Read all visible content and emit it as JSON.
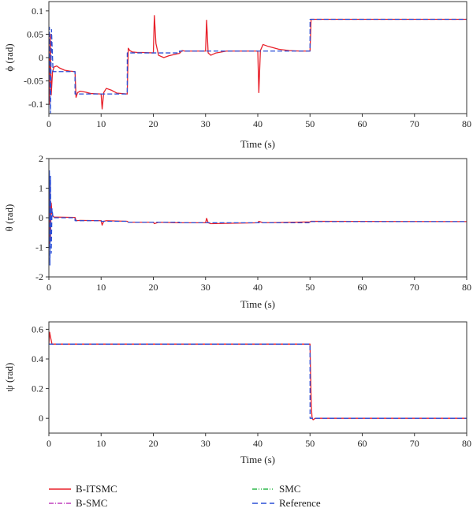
{
  "colors": {
    "b_itsmc": "#e8202a",
    "b_smc": "#c03fbe",
    "smc": "#2fb84a",
    "reference": "#2a4fd6",
    "axis": "#333333"
  },
  "legend": {
    "b_itsmc": "B-ITSMC",
    "b_smc": "B-SMC",
    "smc": "SMC",
    "reference": "Reference"
  },
  "chart_data": [
    {
      "type": "line",
      "title": "",
      "xlabel": "Time (s)",
      "ylabel": "ϕ (rad)",
      "xlim": [
        0,
        80
      ],
      "ylim": [
        -0.12,
        0.12
      ],
      "xticks": [
        "0",
        "10",
        "20",
        "30",
        "40",
        "50",
        "60",
        "70",
        "80"
      ],
      "yticks": [
        "0.1",
        "0.05",
        "0",
        "-0.05",
        "-0.1"
      ],
      "ytick_values": [
        0.1,
        0.05,
        0,
        -0.05,
        -0.1
      ],
      "series": [
        {
          "name": "B-ITSMC",
          "x": [
            0,
            0.1,
            0.25,
            0.45,
            0.7,
            1,
            1.5,
            2,
            3,
            4,
            5,
            5.2,
            5.5,
            6,
            7,
            8,
            10,
            10.2,
            10.5,
            11,
            12,
            13,
            15,
            15.2,
            15.5,
            16,
            17,
            18,
            20,
            20.2,
            20.5,
            21,
            22,
            23,
            25,
            25.5,
            26,
            27,
            30,
            30.2,
            30.5,
            31,
            32,
            34,
            36,
            38,
            40,
            40.2,
            40.5,
            41,
            42,
            44,
            46,
            48,
            50,
            50.2,
            51,
            55,
            60,
            70,
            80
          ],
          "y": [
            0,
            -0.1,
            0.05,
            -0.08,
            -0.03,
            -0.02,
            -0.018,
            -0.022,
            -0.027,
            -0.029,
            -0.03,
            -0.085,
            -0.075,
            -0.072,
            -0.074,
            -0.077,
            -0.078,
            -0.11,
            -0.075,
            -0.066,
            -0.07,
            -0.076,
            -0.078,
            0.02,
            0.015,
            0.012,
            0.011,
            0.011,
            0.01,
            0.09,
            0.03,
            0.005,
            0.0,
            0.004,
            0.009,
            0.015,
            0.014,
            0.014,
            0.014,
            0.08,
            0.01,
            0.005,
            0.01,
            0.014,
            0.014,
            0.014,
            0.014,
            -0.075,
            0.015,
            0.028,
            0.024,
            0.018,
            0.015,
            0.014,
            0.014,
            0.082,
            0.082,
            0.082,
            0.082,
            0.082,
            0.082
          ]
        },
        {
          "name": "Reference",
          "x": [
            0,
            0.1,
            0.3,
            0.5,
            0.8,
            1,
            5,
            5.01,
            10,
            10.01,
            15,
            15.01,
            20,
            20.01,
            25,
            25.01,
            30,
            30.01,
            40,
            40.01,
            50,
            50.01,
            80
          ],
          "y": [
            0,
            0.065,
            -0.12,
            0.06,
            -0.03,
            -0.03,
            -0.03,
            -0.078,
            -0.078,
            -0.078,
            -0.078,
            0.01,
            0.01,
            0.01,
            0.01,
            0.014,
            0.014,
            0.014,
            0.014,
            0.014,
            0.014,
            0.082,
            0.082
          ]
        }
      ]
    },
    {
      "type": "line",
      "title": "",
      "xlabel": "Time (s)",
      "ylabel": "θ (rad)",
      "xlim": [
        0,
        80
      ],
      "ylim": [
        -2,
        2
      ],
      "xticks": [
        "0",
        "10",
        "20",
        "30",
        "40",
        "50",
        "60",
        "70",
        "80"
      ],
      "yticks": [
        "2",
        "1",
        "0",
        "-1",
        "-2"
      ],
      "ytick_values": [
        2,
        1,
        0,
        -1,
        -2
      ],
      "series": [
        {
          "name": "B-ITSMC",
          "x": [
            0,
            0.1,
            0.2,
            0.3,
            0.45,
            0.6,
            0.8,
            1,
            2,
            5,
            5.2,
            6,
            10,
            10.2,
            10.5,
            11,
            15,
            15.2,
            20,
            20.2,
            21,
            25,
            30,
            30.2,
            30.5,
            31,
            40,
            40.2,
            41,
            50,
            50.2,
            80
          ],
          "y": [
            0,
            -1.0,
            1.2,
            -0.8,
            0.5,
            0.15,
            0.05,
            0.02,
            0.02,
            0.01,
            -0.1,
            -0.09,
            -0.1,
            -0.25,
            -0.12,
            -0.1,
            -0.12,
            -0.15,
            -0.15,
            -0.2,
            -0.15,
            -0.17,
            -0.17,
            -0.02,
            -0.17,
            -0.2,
            -0.17,
            -0.12,
            -0.17,
            -0.14,
            -0.12,
            -0.13
          ]
        },
        {
          "name": "Reference",
          "x": [
            0,
            0.1,
            0.2,
            0.3,
            0.45,
            0.6,
            0.8,
            1,
            5,
            5.01,
            10,
            10.01,
            15,
            15.01,
            25,
            25.01,
            50,
            50.01,
            80
          ],
          "y": [
            0,
            1.6,
            -1.6,
            1.4,
            -1.2,
            0.3,
            0.0,
            0.0,
            0.0,
            -0.1,
            -0.1,
            -0.12,
            -0.12,
            -0.15,
            -0.15,
            -0.17,
            -0.17,
            -0.13,
            -0.13
          ]
        }
      ]
    },
    {
      "type": "line",
      "title": "",
      "xlabel": "Time (s)",
      "ylabel": "ψ (rad)",
      "xlim": [
        0,
        80
      ],
      "ylim": [
        -0.1,
        0.65
      ],
      "xticks": [
        "0",
        "10",
        "20",
        "30",
        "40",
        "50",
        "60",
        "70",
        "80"
      ],
      "yticks": [
        "0.6",
        "0.4",
        "0.2",
        "0"
      ],
      "ytick_values": [
        0.6,
        0.4,
        0.2,
        0
      ],
      "series": [
        {
          "name": "B-ITSMC",
          "x": [
            0,
            0.15,
            0.3,
            0.6,
            1,
            50,
            50.1,
            50.25,
            50.4,
            50.6,
            51,
            80
          ],
          "y": [
            0.5,
            0.58,
            0.55,
            0.5,
            0.5,
            0.5,
            0.3,
            0.08,
            0.0,
            -0.01,
            0.0,
            0.0
          ]
        },
        {
          "name": "Reference",
          "x": [
            0,
            50,
            50.01,
            80
          ],
          "y": [
            0.5,
            0.5,
            0.0,
            0.0
          ]
        }
      ]
    }
  ]
}
